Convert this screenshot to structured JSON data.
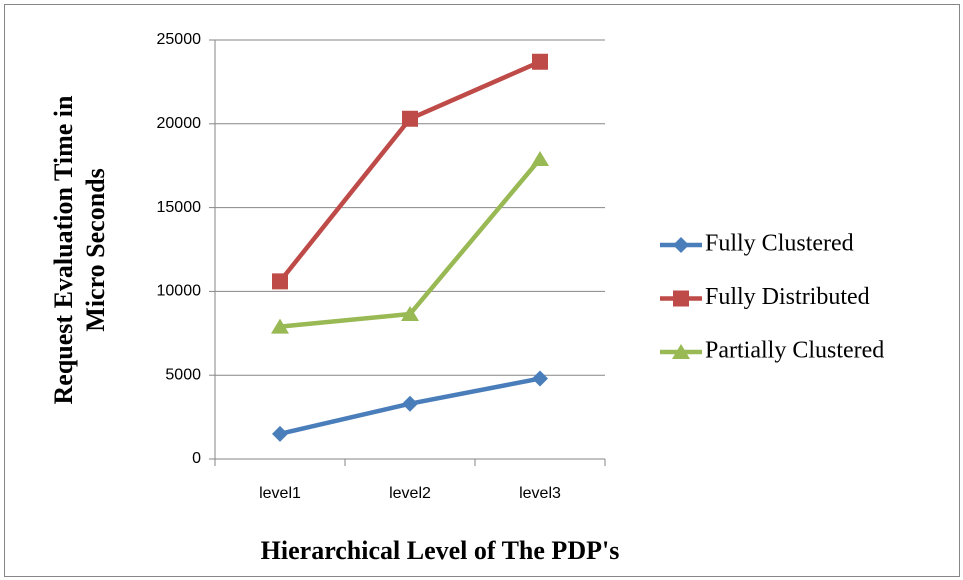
{
  "chart_data": {
    "type": "line",
    "categories": [
      "level1",
      "level2",
      "level3"
    ],
    "series": [
      {
        "name": "Fully Clustered",
        "color": "#4a7ebb",
        "marker": "diamond",
        "values": [
          1500,
          3300,
          4800
        ]
      },
      {
        "name": "Fully Distributed",
        "color": "#be4b48",
        "marker": "square",
        "values": [
          10600,
          20300,
          23700
        ]
      },
      {
        "name": "Partially Clustered",
        "color": "#98b954",
        "marker": "triangle",
        "values": [
          7900,
          8650,
          17900
        ]
      }
    ],
    "x_label": "Hierarchical Level of The PDP's",
    "y_label": [
      "Request Evaluation Time in",
      "Micro Seconds"
    ],
    "ylim": [
      0,
      25000
    ],
    "yticks": [
      0,
      5000,
      10000,
      15000,
      20000,
      25000
    ],
    "grid": true,
    "legend": "right"
  }
}
